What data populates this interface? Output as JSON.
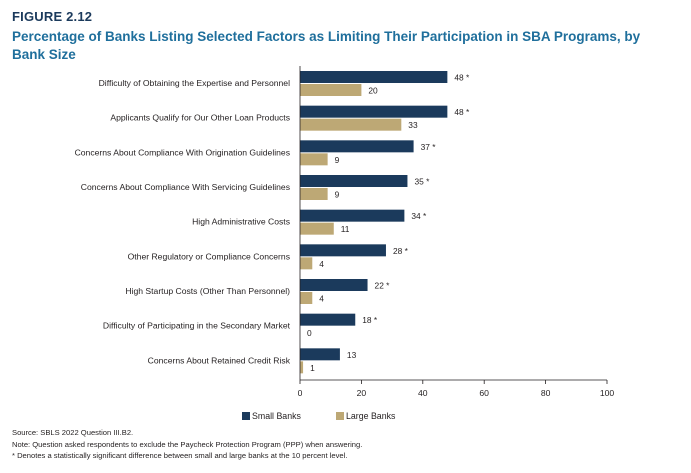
{
  "figure": {
    "label": "FIGURE 2.12",
    "title": "Percentage of Banks Listing Selected Factors as Limiting Their Participation in SBA Programs, by Bank Size"
  },
  "notes": {
    "source": "Source: SBLS 2022 Question III.B2.",
    "note": "Note: Question asked respondents to exclude the Paycheck Protection Program (PPP) when answering.",
    "significance": "* Denotes a statistically significant difference between small and large banks at the 10 percent level."
  },
  "colors": {
    "small_banks": "#1b3a5c",
    "large_banks": "#bda875",
    "title": "#1f6f9c"
  },
  "chart_data": {
    "type": "bar",
    "orientation": "horizontal",
    "categories": [
      "Difficulty of Obtaining the Expertise and Personnel",
      "Applicants Qualify for Our Other Loan Products",
      "Concerns About Compliance With Origination Guidelines",
      "Concerns About Compliance With Servicing Guidelines",
      "High Administrative Costs",
      "Other Regulatory or Compliance Concerns",
      "High Startup Costs (Other Than Personnel)",
      "Difficulty of Participating in the Secondary Market",
      "Concerns About Retained Credit Risk"
    ],
    "series": [
      {
        "name": "Small Banks",
        "color": "#1b3a5c",
        "values": [
          48,
          48,
          37,
          35,
          34,
          28,
          22,
          18,
          13
        ],
        "labels": [
          "48 *",
          "48 *",
          "37 *",
          "35 *",
          "34 *",
          "28 *",
          "22 *",
          "18 *",
          "13"
        ]
      },
      {
        "name": "Large Banks",
        "color": "#bda875",
        "values": [
          20,
          33,
          9,
          9,
          11,
          4,
          4,
          0,
          1
        ],
        "labels": [
          "20",
          "33",
          "9",
          "9",
          "11",
          "4",
          "4",
          "0",
          "1"
        ]
      }
    ],
    "xlim": [
      0,
      100
    ],
    "xticks": [
      "0",
      "20",
      "40",
      "60",
      "80",
      "100"
    ],
    "legend_position": "bottom",
    "grid": false
  }
}
